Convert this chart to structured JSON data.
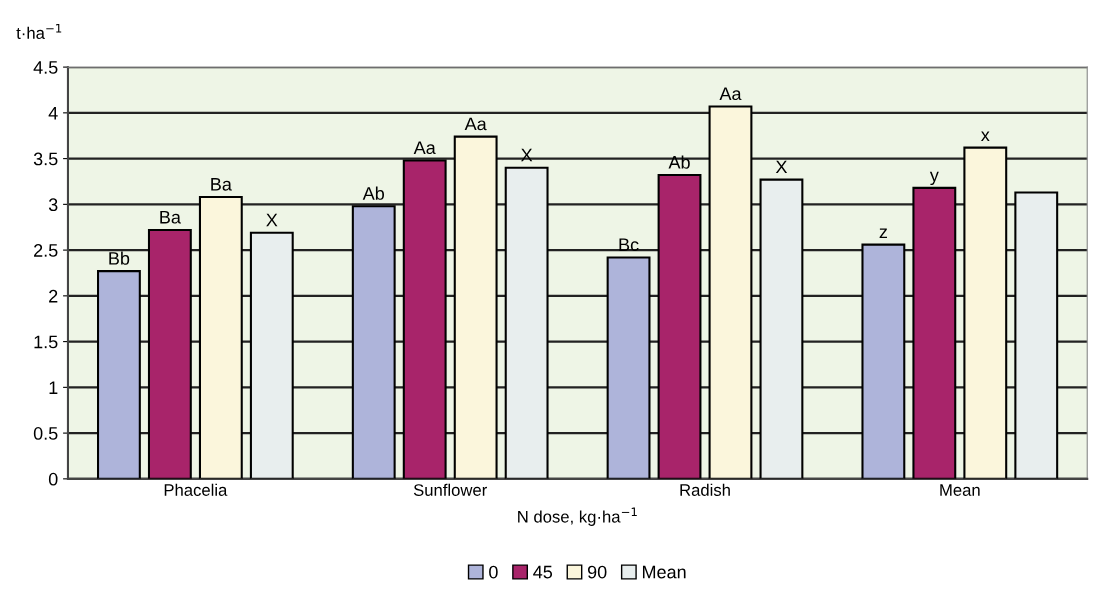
{
  "chart_data": {
    "type": "bar",
    "ylabel": "t·ha$^{−1}$",
    "xlabel": "N dose, kg·ha$^{−1}$",
    "categories": [
      "Phacelia",
      "Sunflower",
      "Radish",
      "Mean"
    ],
    "series": [
      {
        "name": "0",
        "color": "#aeb4da",
        "values": [
          2.27,
          2.98,
          2.42,
          2.56
        ],
        "value_labels": [
          "Bb",
          "Ab",
          "Bc",
          "z"
        ]
      },
      {
        "name": "45",
        "color": "#a8246a",
        "values": [
          2.72,
          3.48,
          3.32,
          3.18
        ],
        "value_labels": [
          "Ba",
          "Aa",
          "Ab",
          "y"
        ]
      },
      {
        "name": "90",
        "color": "#fbf6dc",
        "values": [
          3.08,
          3.74,
          4.07,
          3.62
        ],
        "value_labels": [
          "Ba",
          "Aa",
          "Aa",
          "x"
        ]
      },
      {
        "name": "Mean",
        "color": "#e8eeee",
        "values": [
          2.69,
          3.4,
          3.27,
          3.13
        ],
        "value_labels": [
          "X",
          "X",
          "X",
          null
        ]
      }
    ],
    "ylim": [
      0,
      4.5
    ],
    "yticks": [
      0,
      0.5,
      1,
      1.5,
      2,
      2.5,
      3,
      3.5,
      4,
      4.5
    ],
    "grid": "y",
    "legend": "bottom"
  }
}
